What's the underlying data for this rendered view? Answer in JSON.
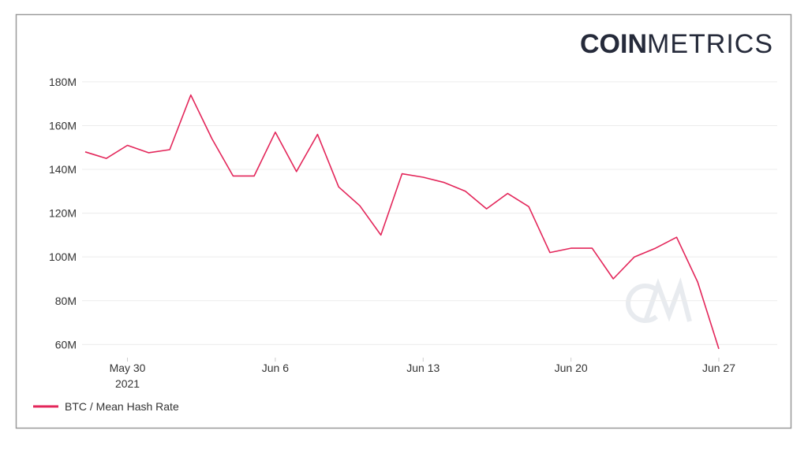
{
  "logo": {
    "bold": "COIN",
    "light": "METRICS"
  },
  "chart_data": {
    "type": "line",
    "x": [
      "2021-05-28",
      "2021-05-29",
      "2021-05-30",
      "2021-05-31",
      "2021-06-01",
      "2021-06-02",
      "2021-06-03",
      "2021-06-04",
      "2021-06-05",
      "2021-06-06",
      "2021-06-07",
      "2021-06-08",
      "2021-06-09",
      "2021-06-10",
      "2021-06-11",
      "2021-06-12",
      "2021-06-13",
      "2021-06-14",
      "2021-06-15",
      "2021-06-16",
      "2021-06-17",
      "2021-06-18",
      "2021-06-19",
      "2021-06-20",
      "2021-06-21",
      "2021-06-22",
      "2021-06-23",
      "2021-06-24",
      "2021-06-25",
      "2021-06-26",
      "2021-06-27"
    ],
    "series": [
      {
        "name": "BTC / Mean Hash Rate",
        "color": "#e3265a",
        "values": [
          148,
          145,
          151,
          147.6,
          149,
          174,
          154,
          137,
          137,
          157,
          139,
          156,
          132,
          123.4,
          110,
          138,
          136.4,
          134,
          130,
          122,
          129,
          123,
          102,
          104,
          104,
          90,
          100,
          104,
          109,
          88.5,
          58
        ]
      }
    ],
    "xlim": [
      "2021-05-28",
      "2021-06-27"
    ],
    "xticks": [
      {
        "value": "2021-05-30",
        "label": "May 30",
        "year": "2021"
      },
      {
        "value": "2021-06-06",
        "label": "Jun 6"
      },
      {
        "value": "2021-06-13",
        "label": "Jun 13"
      },
      {
        "value": "2021-06-20",
        "label": "Jun 20"
      },
      {
        "value": "2021-06-27",
        "label": "Jun 27"
      }
    ],
    "ylim": [
      54,
      185
    ],
    "yticks": [
      {
        "value": 60,
        "label": "60M"
      },
      {
        "value": 80,
        "label": "80M"
      },
      {
        "value": 100,
        "label": "100M"
      },
      {
        "value": 120,
        "label": "120M"
      },
      {
        "value": 140,
        "label": "140M"
      },
      {
        "value": 160,
        "label": "160M"
      },
      {
        "value": 180,
        "label": "180M"
      }
    ],
    "grid": true,
    "legend": "bottom-left"
  }
}
